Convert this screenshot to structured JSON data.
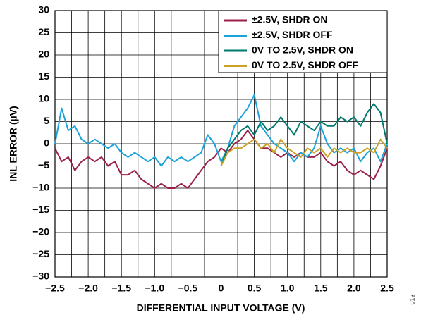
{
  "chart_data": {
    "type": "line",
    "xlabel": "DIFFERENTIAL INPUT VOLTAGE (V)",
    "ylabel": "INL ERROR (µV)",
    "figure_id": "013",
    "x": [
      -2.5,
      -2.4,
      -2.3,
      -2.2,
      -2.1,
      -2.0,
      -1.9,
      -1.8,
      -1.7,
      -1.6,
      -1.5,
      -1.4,
      -1.3,
      -1.2,
      -1.1,
      -1.0,
      -0.9,
      -0.8,
      -0.7,
      -0.6,
      -0.5,
      -0.4,
      -0.3,
      -0.2,
      -0.1,
      0,
      0.1,
      0.2,
      0.3,
      0.4,
      0.5,
      0.6,
      0.7,
      0.8,
      0.9,
      1.0,
      1.1,
      1.2,
      1.3,
      1.4,
      1.5,
      1.6,
      1.7,
      1.8,
      1.9,
      2.0,
      2.1,
      2.2,
      2.3,
      2.4,
      2.5
    ],
    "series": [
      {
        "name": "±2.5V, SHDR ON",
        "color": "#9b1f4b",
        "values": [
          -1,
          -4,
          -3,
          -6,
          -4,
          -3,
          -4,
          -3,
          -5,
          -4,
          -7,
          -7,
          -6,
          -8,
          -9,
          -10,
          -9,
          -10,
          -10,
          -9,
          -10,
          -8,
          -6,
          -4,
          -3,
          -1,
          -2,
          0,
          1,
          3,
          1,
          -1,
          -1,
          -2,
          -3,
          -2,
          -3,
          -2,
          -3,
          -3,
          -2,
          -4,
          -5,
          -4,
          -6,
          -7,
          -6,
          -7,
          -8,
          -5,
          -1
        ]
      },
      {
        "name": "±2.5V, SHDR OFF",
        "color": "#1ba3d9",
        "values": [
          0,
          8,
          3,
          4,
          1,
          0,
          1,
          0,
          -1,
          0,
          -2,
          -3,
          -2,
          -3,
          -4,
          -3,
          -5,
          -3,
          -4,
          -3,
          -4,
          -3,
          -2,
          2,
          0,
          -4,
          -1,
          4,
          6,
          8,
          11,
          4,
          2,
          0,
          -1,
          -2,
          -4,
          -2,
          -3,
          -1,
          4,
          0,
          -2,
          -1,
          -2,
          -1,
          -4,
          -2,
          -1,
          -4,
          0
        ]
      },
      {
        "name": "0V TO 2.5V, SHDR ON",
        "color": "#007a6e",
        "values": [
          null,
          null,
          null,
          null,
          null,
          null,
          null,
          null,
          null,
          null,
          null,
          null,
          null,
          null,
          null,
          null,
          null,
          null,
          null,
          null,
          null,
          null,
          null,
          null,
          null,
          -5,
          -1,
          1,
          3,
          4,
          2,
          5,
          3,
          4,
          6,
          4,
          2,
          5,
          4,
          3,
          5,
          4,
          4,
          6,
          5,
          6,
          4,
          7,
          9,
          7,
          0
        ]
      },
      {
        "name": "0V TO 2.5V, SHDR OFF",
        "color": "#c9a227",
        "values": [
          null,
          null,
          null,
          null,
          null,
          null,
          null,
          null,
          null,
          null,
          null,
          null,
          null,
          null,
          null,
          null,
          null,
          null,
          null,
          null,
          null,
          null,
          null,
          null,
          null,
          -5,
          -2,
          -1,
          -1,
          0,
          1,
          -1,
          0,
          -2,
          1,
          -1,
          -2,
          -3,
          -1,
          -2,
          -1,
          -3,
          -1,
          -2,
          -1,
          -2,
          -2,
          -1,
          -2,
          1,
          -1
        ]
      }
    ],
    "xlim": [
      -2.5,
      2.5
    ],
    "xticks": [
      {
        "value": -2.5,
        "label": "−2.5"
      },
      {
        "value": -2,
        "label": "−2.0"
      },
      {
        "value": -1.5,
        "label": "−1.5"
      },
      {
        "value": -1,
        "label": "−1.0"
      },
      {
        "value": -0.5,
        "label": "−0.5"
      },
      0,
      0.5,
      {
        "value": 1,
        "label": "1.0"
      },
      1.5,
      {
        "value": 2,
        "label": "2.0"
      },
      2.5
    ],
    "ylim": [
      -30,
      30
    ],
    "yticks": [
      30,
      25,
      20,
      15,
      10,
      5,
      0,
      {
        "value": -5,
        "label": "−5"
      },
      {
        "value": -10,
        "label": "−10"
      },
      {
        "value": -15,
        "label": "−15"
      },
      {
        "value": -20,
        "label": "−20"
      },
      {
        "value": -25,
        "label": "−25"
      },
      {
        "value": -30,
        "label": "−30"
      }
    ],
    "grid": true,
    "legend": "upper right"
  }
}
